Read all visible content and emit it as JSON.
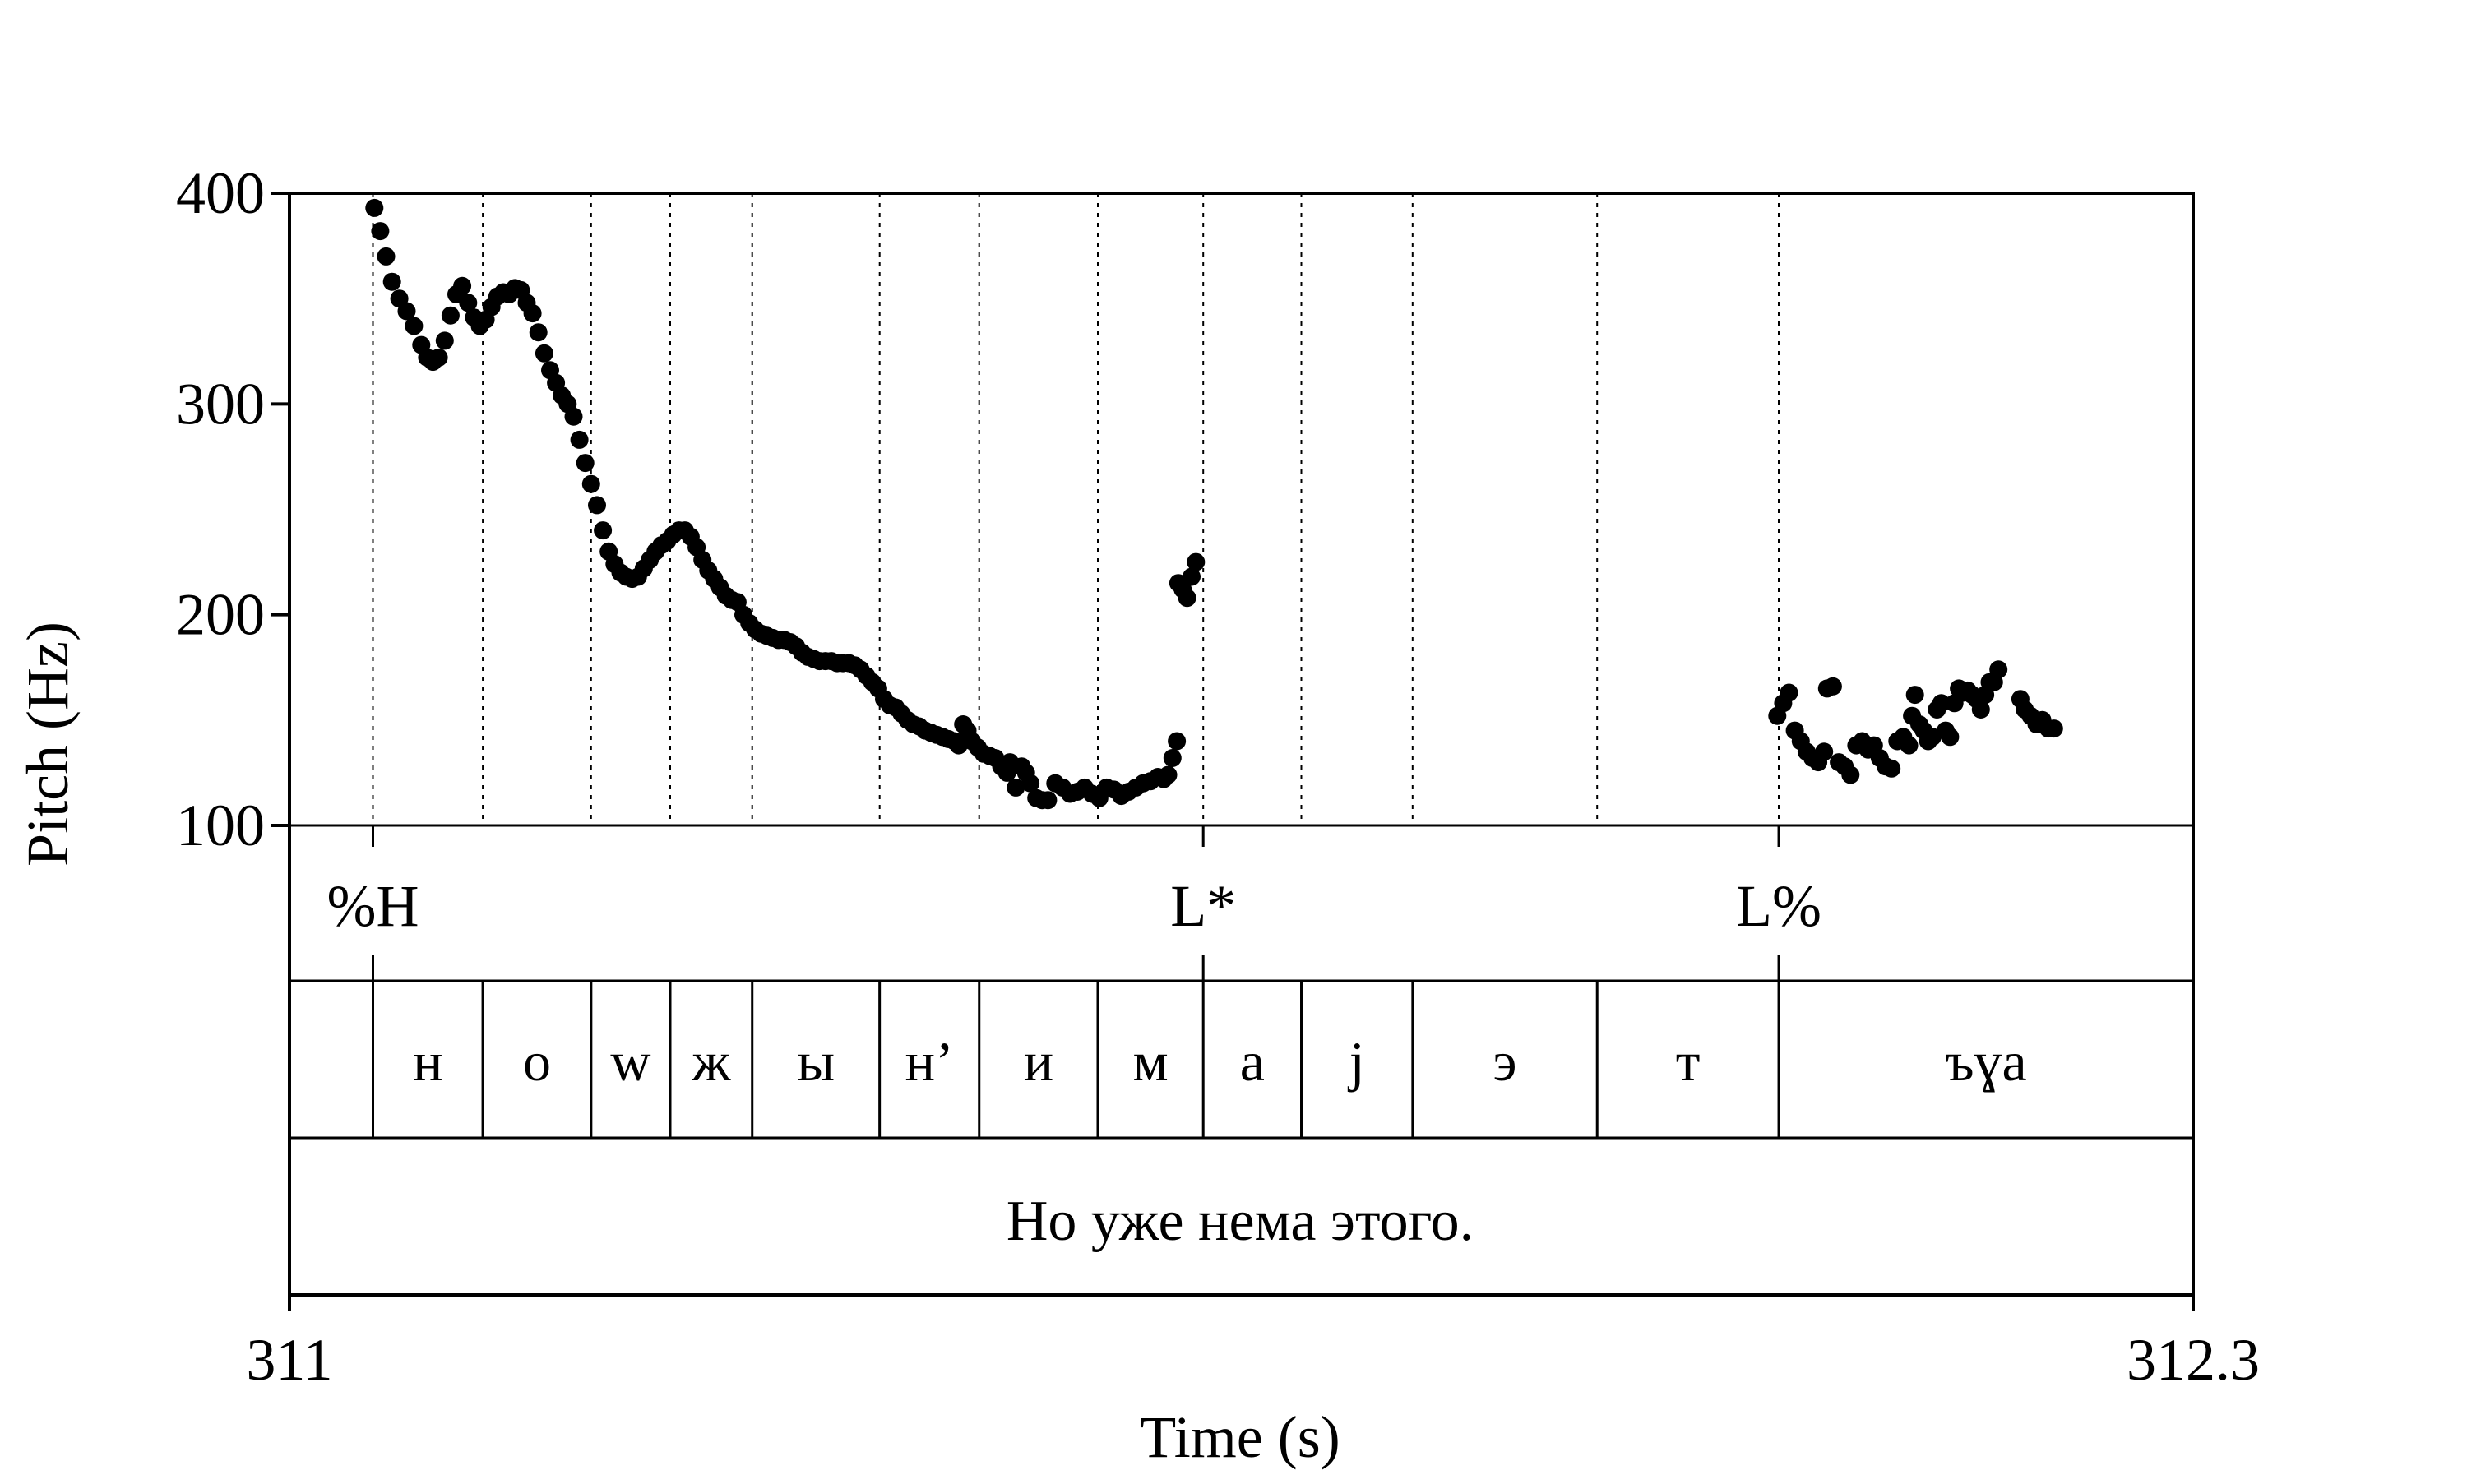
{
  "chart_data": {
    "type": "scatter",
    "title": "",
    "xlabel": "Time (s)",
    "ylabel": "Pitch (Hz)",
    "xlim": [
      311,
      312.3
    ],
    "ylim": [
      100,
      400
    ],
    "x_tick_labels": [
      "311",
      "312.3"
    ],
    "y_ticks": [
      100,
      200,
      300,
      400
    ],
    "y_tick_labels": [
      "100",
      "200",
      "300",
      "400"
    ],
    "grid": false,
    "point_color": "#000000",
    "boundaries": [
      311.057,
      311.132,
      311.206,
      311.26,
      311.316,
      311.403,
      311.471,
      311.552,
      311.624,
      311.691,
      311.767,
      311.893,
      312.017
    ],
    "tones": [
      {
        "time": 311.057,
        "label": "%H"
      },
      {
        "time": 311.624,
        "label": "L*"
      },
      {
        "time": 312.017,
        "label": "L%"
      }
    ],
    "segments": [
      {
        "start": 311.0,
        "end": 311.057,
        "label": ""
      },
      {
        "start": 311.057,
        "end": 311.132,
        "label": "н"
      },
      {
        "start": 311.132,
        "end": 311.206,
        "label": "о"
      },
      {
        "start": 311.206,
        "end": 311.26,
        "label": "w"
      },
      {
        "start": 311.26,
        "end": 311.316,
        "label": "ж"
      },
      {
        "start": 311.316,
        "end": 311.403,
        "label": "ы"
      },
      {
        "start": 311.403,
        "end": 311.471,
        "label": "н’"
      },
      {
        "start": 311.471,
        "end": 311.552,
        "label": "и"
      },
      {
        "start": 311.552,
        "end": 311.624,
        "label": "м"
      },
      {
        "start": 311.624,
        "end": 311.691,
        "label": "а"
      },
      {
        "start": 311.691,
        "end": 311.767,
        "label": "j"
      },
      {
        "start": 311.767,
        "end": 311.893,
        "label": "э"
      },
      {
        "start": 311.893,
        "end": 312.017,
        "label": "т"
      },
      {
        "start": 312.017,
        "end": 312.3,
        "label": "ъɣа"
      }
    ],
    "sentence": "Но уже нема этого.",
    "contours": [
      {
        "name": "main",
        "points": [
          [
            311.058,
            393
          ],
          [
            311.062,
            382
          ],
          [
            311.066,
            370
          ],
          [
            311.07,
            358
          ],
          [
            311.075,
            350
          ],
          [
            311.08,
            344
          ],
          [
            311.085,
            337
          ],
          [
            311.09,
            328
          ],
          [
            311.094,
            322
          ],
          [
            311.098,
            320
          ],
          [
            311.102,
            322
          ],
          [
            311.106,
            330
          ],
          [
            311.11,
            342
          ],
          [
            311.114,
            352
          ],
          [
            311.118,
            356
          ],
          [
            311.122,
            348
          ],
          [
            311.126,
            341
          ],
          [
            311.13,
            337
          ],
          [
            311.134,
            340
          ],
          [
            311.138,
            346
          ],
          [
            311.142,
            351
          ],
          [
            311.146,
            353
          ],
          [
            311.15,
            352
          ],
          [
            311.154,
            355
          ],
          [
            311.158,
            354
          ],
          [
            311.162,
            348
          ],
          [
            311.166,
            343
          ],
          [
            311.17,
            334
          ],
          [
            311.174,
            324
          ],
          [
            311.178,
            316
          ],
          [
            311.182,
            310
          ],
          [
            311.186,
            304
          ],
          [
            311.19,
            300
          ],
          [
            311.194,
            294
          ],
          [
            311.198,
            283
          ],
          [
            311.202,
            272
          ],
          [
            311.206,
            262
          ],
          [
            311.21,
            252
          ],
          [
            311.214,
            240
          ],
          [
            311.218,
            230
          ],
          [
            311.222,
            224
          ],
          [
            311.226,
            220
          ],
          [
            311.23,
            218
          ],
          [
            311.234,
            217
          ],
          [
            311.238,
            218
          ],
          [
            311.242,
            222
          ],
          [
            311.246,
            226
          ],
          [
            311.25,
            230
          ],
          [
            311.254,
            233
          ],
          [
            311.258,
            235
          ],
          [
            311.262,
            238
          ],
          [
            311.266,
            240
          ],
          [
            311.27,
            240
          ],
          [
            311.274,
            237
          ],
          [
            311.278,
            232
          ],
          [
            311.282,
            226
          ],
          [
            311.286,
            221
          ],
          [
            311.29,
            217
          ],
          [
            311.294,
            213
          ],
          [
            311.298,
            209
          ],
          [
            311.302,
            207
          ],
          [
            311.306,
            206
          ],
          [
            311.31,
            200
          ],
          [
            311.314,
            196
          ],
          [
            311.318,
            193
          ],
          [
            311.322,
            191
          ],
          [
            311.326,
            190
          ],
          [
            311.33,
            189
          ],
          [
            311.334,
            188
          ],
          [
            311.338,
            188
          ],
          [
            311.342,
            187
          ],
          [
            311.346,
            185
          ],
          [
            311.35,
            182
          ],
          [
            311.354,
            180
          ],
          [
            311.358,
            179
          ],
          [
            311.362,
            178
          ],
          [
            311.366,
            178
          ],
          [
            311.37,
            178
          ],
          [
            311.374,
            177
          ],
          [
            311.378,
            177
          ],
          [
            311.382,
            177
          ],
          [
            311.386,
            176
          ],
          [
            311.39,
            174
          ],
          [
            311.394,
            171
          ],
          [
            311.398,
            168
          ],
          [
            311.402,
            165
          ],
          [
            311.406,
            160
          ],
          [
            311.41,
            157
          ],
          [
            311.414,
            156
          ],
          [
            311.418,
            153
          ],
          [
            311.422,
            150
          ],
          [
            311.426,
            148
          ],
          [
            311.43,
            147
          ],
          [
            311.434,
            145
          ],
          [
            311.438,
            144
          ],
          [
            311.442,
            143
          ],
          [
            311.446,
            142
          ],
          [
            311.45,
            141
          ],
          [
            311.454,
            140
          ],
          [
            311.457,
            138
          ],
          [
            311.46,
            148
          ],
          [
            311.463,
            145
          ],
          [
            311.466,
            140
          ],
          [
            311.47,
            137
          ],
          [
            311.474,
            134
          ],
          [
            311.478,
            133
          ],
          [
            311.482,
            132
          ],
          [
            311.486,
            128
          ],
          [
            311.49,
            125
          ],
          [
            311.492,
            130
          ],
          [
            311.496,
            118
          ],
          [
            311.5,
            128
          ],
          [
            311.503,
            125
          ],
          [
            311.506,
            120
          ],
          [
            311.51,
            113
          ],
          [
            311.514,
            112
          ],
          [
            311.518,
            112
          ],
          [
            311.523,
            120
          ],
          [
            311.528,
            118
          ],
          [
            311.533,
            115
          ],
          [
            311.538,
            116
          ],
          [
            311.543,
            118
          ],
          [
            311.548,
            115
          ],
          [
            311.553,
            113
          ],
          [
            311.558,
            118
          ],
          [
            311.563,
            117
          ],
          [
            311.568,
            114
          ],
          [
            311.573,
            116
          ],
          [
            311.578,
            118
          ],
          [
            311.583,
            120
          ],
          [
            311.588,
            121
          ],
          [
            311.593,
            123
          ],
          [
            311.597,
            122
          ],
          [
            311.6,
            124
          ],
          [
            311.603,
            132
          ],
          [
            311.606,
            140
          ]
        ]
      },
      {
        "name": "peak",
        "points": [
          [
            311.607,
            215
          ],
          [
            311.61,
            212
          ],
          [
            311.613,
            208
          ],
          [
            311.616,
            218
          ],
          [
            311.619,
            225
          ]
        ]
      },
      {
        "name": "final",
        "points": [
          [
            312.016,
            152
          ],
          [
            312.02,
            158
          ],
          [
            312.024,
            163
          ],
          [
            312.028,
            145
          ],
          [
            312.032,
            140
          ],
          [
            312.036,
            135
          ],
          [
            312.04,
            132
          ],
          [
            312.044,
            130
          ],
          [
            312.048,
            135
          ],
          [
            312.05,
            165
          ],
          [
            312.054,
            166
          ],
          [
            312.058,
            130
          ],
          [
            312.062,
            128
          ],
          [
            312.066,
            124
          ],
          [
            312.07,
            138
          ],
          [
            312.074,
            140
          ],
          [
            312.078,
            136
          ],
          [
            312.082,
            138
          ],
          [
            312.086,
            132
          ],
          [
            312.09,
            128
          ],
          [
            312.094,
            127
          ],
          [
            312.098,
            140
          ],
          [
            312.102,
            142
          ],
          [
            312.106,
            138
          ],
          [
            312.108,
            152
          ],
          [
            312.11,
            162
          ],
          [
            312.113,
            148
          ],
          [
            312.116,
            145
          ],
          [
            312.119,
            140
          ],
          [
            312.122,
            142
          ],
          [
            312.125,
            155
          ],
          [
            312.128,
            158
          ],
          [
            312.131,
            145
          ],
          [
            312.134,
            142
          ],
          [
            312.137,
            158
          ],
          [
            312.14,
            165
          ],
          [
            312.143,
            163
          ],
          [
            312.146,
            164
          ],
          [
            312.149,
            162
          ],
          [
            312.152,
            160
          ],
          [
            312.155,
            155
          ],
          [
            312.158,
            162
          ],
          [
            312.161,
            168
          ],
          [
            312.164,
            168
          ],
          [
            312.167,
            174
          ],
          [
            312.182,
            160
          ],
          [
            312.185,
            155
          ],
          [
            312.189,
            152
          ],
          [
            312.193,
            148
          ],
          [
            312.197,
            150
          ],
          [
            312.201,
            146
          ],
          [
            312.205,
            146
          ]
        ]
      }
    ]
  }
}
